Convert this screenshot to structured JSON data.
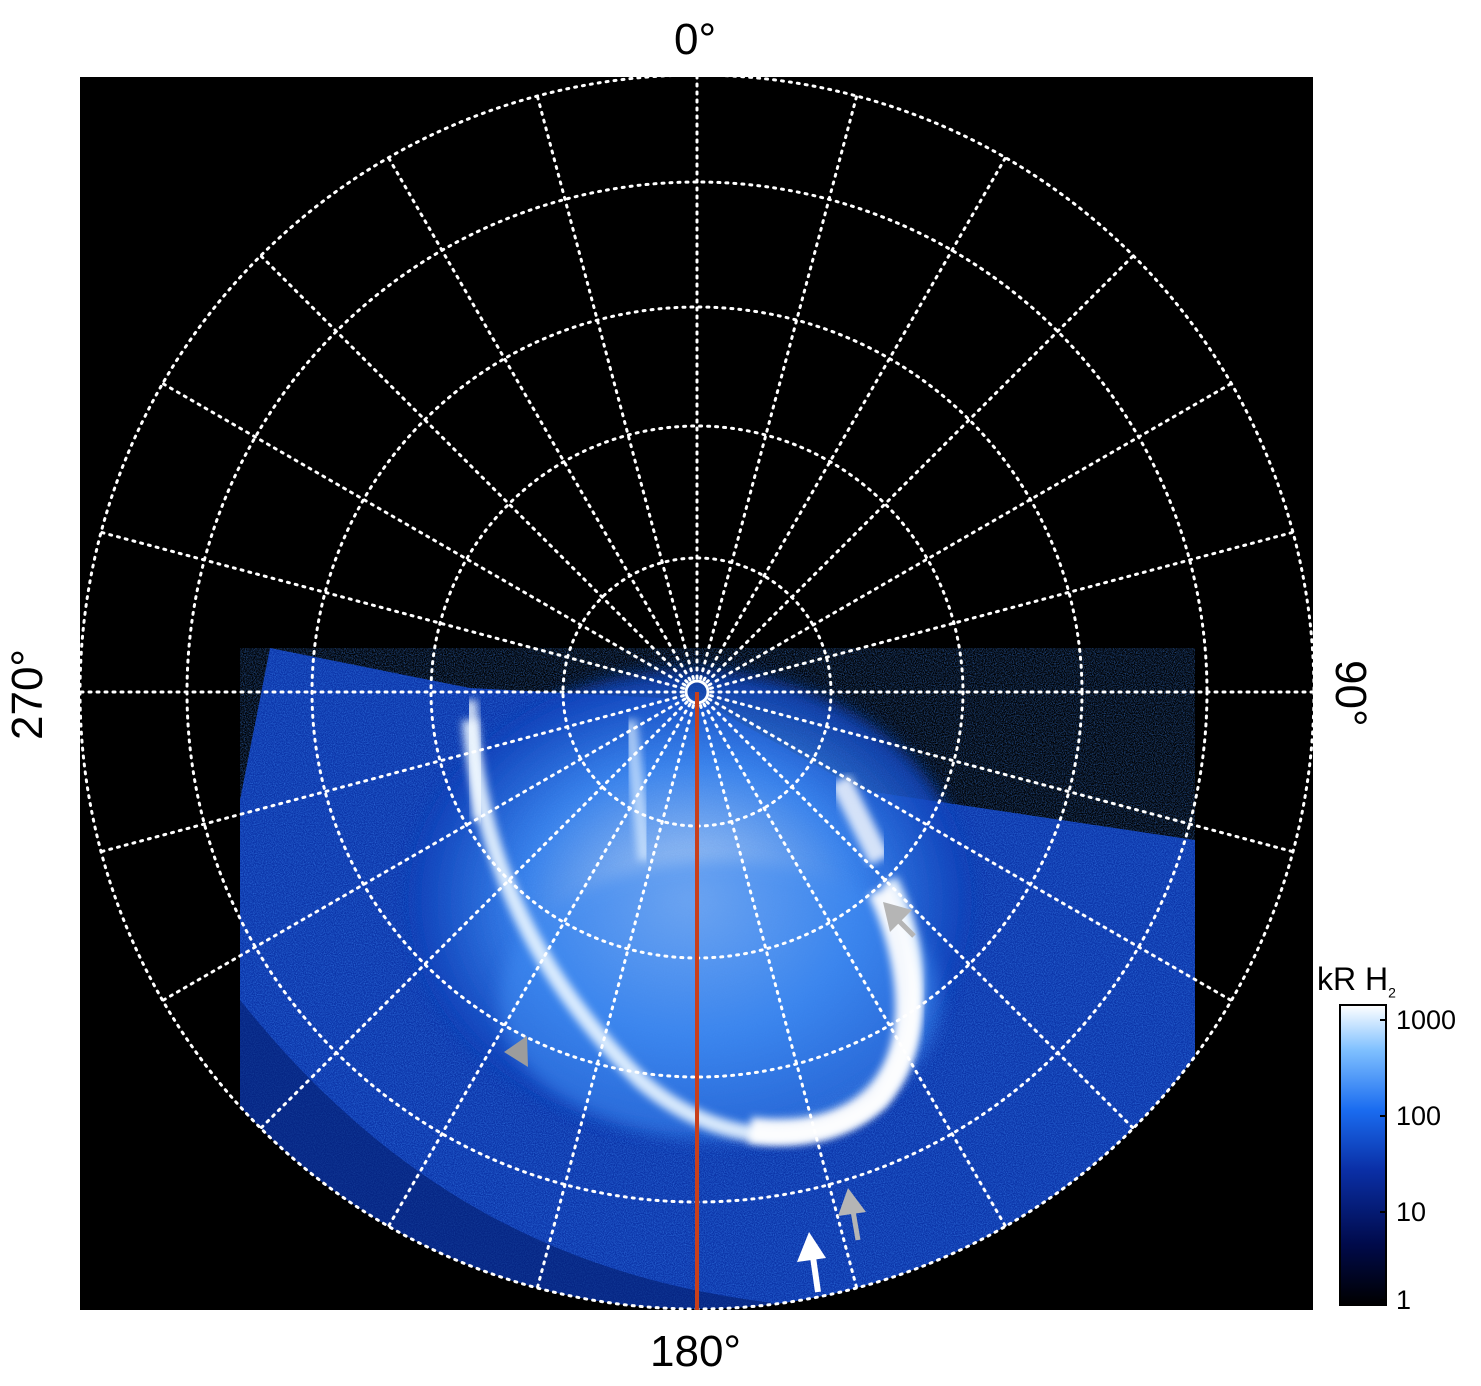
{
  "labels": {
    "top": "0°",
    "bottom": "180°",
    "left": "270°",
    "right": "90°"
  },
  "colorbar": {
    "title_main": "kR H",
    "title_sub": "2",
    "ticks": [
      "1000",
      "100",
      "10",
      "1"
    ],
    "gradient": [
      "#000000",
      "#000a4a",
      "#0a2fa6",
      "#1a6cf0",
      "#7fc0ff",
      "#ffffff"
    ]
  },
  "colors": {
    "background": "#000000",
    "grid": "#ffffff",
    "meridian_line": "#c8401c",
    "arrow_white": "#ffffff",
    "arrow_gray": "#b5b5b5"
  },
  "annotations": [
    "white-arrow",
    "gray-arrow-lower",
    "gray-arrow-upper",
    "gray-arrow-left"
  ]
}
